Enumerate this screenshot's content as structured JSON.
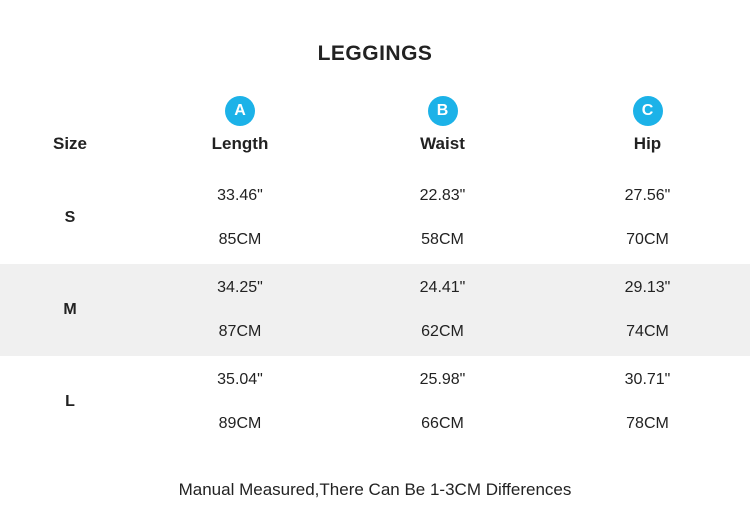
{
  "title": "LEGGINGS",
  "table": {
    "size_header": "Size",
    "columns": [
      {
        "badge": "A",
        "label": "Length"
      },
      {
        "badge": "B",
        "label": "Waist"
      },
      {
        "badge": "C",
        "label": "Hip"
      }
    ],
    "rows": [
      {
        "size": "S",
        "inches": [
          "33.46\"",
          "22.83\"",
          "27.56\""
        ],
        "cm": [
          "85CM",
          "58CM",
          "70CM"
        ]
      },
      {
        "size": "M",
        "inches": [
          "34.25\"",
          "24.41\"",
          "29.13\""
        ],
        "cm": [
          "87CM",
          "62CM",
          "74CM"
        ]
      },
      {
        "size": "L",
        "inches": [
          "35.04\"",
          "25.98\"",
          "30.71\""
        ],
        "cm": [
          "89CM",
          "66CM",
          "78CM"
        ]
      }
    ]
  },
  "footer": "Manual Measured,There Can Be 1-3CM Differences",
  "colors": {
    "badge": "#1cb2e8",
    "highlight_row": "#f0f0f0",
    "text": "#222222"
  }
}
